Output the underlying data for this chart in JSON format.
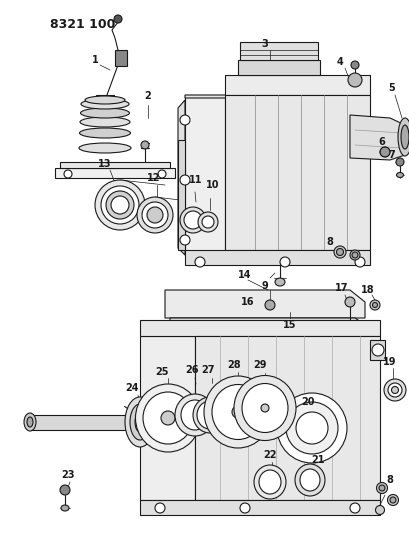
{
  "title": "8321 100",
  "bg": "#ffffff",
  "lc": "#1a1a1a",
  "figsize": [
    4.1,
    5.33
  ],
  "dpi": 100
}
